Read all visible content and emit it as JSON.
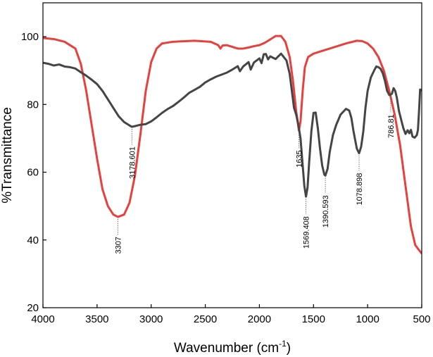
{
  "chart_data": {
    "type": "line",
    "title": "",
    "xlabel": "Wavenumber (cm",
    "xlabel_sup": "-1",
    "xlabel_suffix": ")",
    "ylabel": "%Transmittance",
    "xlim": [
      4000,
      500
    ],
    "ylim": [
      20,
      110
    ],
    "x_reversed": true,
    "grid": false,
    "legend": "none",
    "xticks": [
      4000,
      3500,
      3000,
      2500,
      2000,
      1500,
      1000,
      500
    ],
    "xtick_labels": [
      "4000",
      "3500",
      "3000",
      "2500",
      "2000",
      "1500",
      "1000",
      "500"
    ],
    "yticks": [
      20,
      40,
      60,
      80,
      100
    ],
    "ytick_labels": [
      "20",
      "40",
      "60",
      "80",
      "100"
    ],
    "series": [
      {
        "color": "#e8403d",
        "points": [
          [
            4000,
            99.6
          ],
          [
            3900,
            99.3
          ],
          [
            3800,
            98.5
          ],
          [
            3700,
            96.5
          ],
          [
            3650,
            92
          ],
          [
            3600,
            84
          ],
          [
            3550,
            74
          ],
          [
            3500,
            64
          ],
          [
            3450,
            55
          ],
          [
            3400,
            50
          ],
          [
            3350,
            47.5
          ],
          [
            3307,
            46.8
          ],
          [
            3250,
            47.5
          ],
          [
            3200,
            51
          ],
          [
            3150,
            59
          ],
          [
            3100,
            71
          ],
          [
            3050,
            84
          ],
          [
            3000,
            92.5
          ],
          [
            2950,
            96.5
          ],
          [
            2900,
            98
          ],
          [
            2800,
            98.5
          ],
          [
            2600,
            98.8
          ],
          [
            2450,
            98.5
          ],
          [
            2380,
            97.5
          ],
          [
            2360,
            96.5
          ],
          [
            2340,
            97.4
          ],
          [
            2300,
            97.5
          ],
          [
            2250,
            97
          ],
          [
            2200,
            96.5
          ],
          [
            2150,
            96.5
          ],
          [
            2100,
            96.8
          ],
          [
            2050,
            97.2
          ],
          [
            2000,
            97.5
          ],
          [
            1950,
            98.2
          ],
          [
            1900,
            99.2
          ],
          [
            1850,
            100.2
          ],
          [
            1800,
            100.2
          ],
          [
            1760,
            98.5
          ],
          [
            1720,
            94
          ],
          [
            1690,
            87
          ],
          [
            1660,
            78
          ],
          [
            1635,
            72.3
          ],
          [
            1620,
            75
          ],
          [
            1600,
            84
          ],
          [
            1580,
            91
          ],
          [
            1550,
            94
          ],
          [
            1500,
            95
          ],
          [
            1400,
            96
          ],
          [
            1300,
            97
          ],
          [
            1200,
            98
          ],
          [
            1100,
            98.8
          ],
          [
            1050,
            98.7
          ],
          [
            1000,
            98
          ],
          [
            950,
            96.5
          ],
          [
            900,
            94
          ],
          [
            850,
            90
          ],
          [
            800,
            84
          ],
          [
            750,
            77
          ],
          [
            700,
            68
          ],
          [
            650,
            56
          ],
          [
            600,
            44
          ],
          [
            560,
            38.5
          ],
          [
            530,
            37.2
          ],
          [
            500,
            36
          ]
        ]
      },
      {
        "color": "#454545",
        "points": [
          [
            4000,
            92.3
          ],
          [
            3950,
            92
          ],
          [
            3900,
            91.5
          ],
          [
            3850,
            91.8
          ],
          [
            3800,
            91.2
          ],
          [
            3750,
            91
          ],
          [
            3700,
            90.6
          ],
          [
            3650,
            89.5
          ],
          [
            3600,
            88.5
          ],
          [
            3550,
            87.3
          ],
          [
            3500,
            86
          ],
          [
            3450,
            84
          ],
          [
            3400,
            81.5
          ],
          [
            3350,
            79
          ],
          [
            3300,
            76.5
          ],
          [
            3250,
            74.8
          ],
          [
            3200,
            73.8
          ],
          [
            3178.6,
            73.4
          ],
          [
            3150,
            73.6
          ],
          [
            3100,
            74
          ],
          [
            3050,
            74.2
          ],
          [
            3000,
            75
          ],
          [
            2950,
            76.2
          ],
          [
            2900,
            77.5
          ],
          [
            2850,
            78.6
          ],
          [
            2800,
            79.5
          ],
          [
            2750,
            80.7
          ],
          [
            2700,
            82
          ],
          [
            2650,
            83.4
          ],
          [
            2600,
            84.3
          ],
          [
            2550,
            85.2
          ],
          [
            2500,
            86.5
          ],
          [
            2450,
            87.4
          ],
          [
            2400,
            88.2
          ],
          [
            2350,
            88.8
          ],
          [
            2300,
            89.4
          ],
          [
            2250,
            90.3
          ],
          [
            2200,
            91.3
          ],
          [
            2180,
            89.8
          ],
          [
            2150,
            91.2
          ],
          [
            2100,
            92.5
          ],
          [
            2080,
            90.3
          ],
          [
            2050,
            92.4
          ],
          [
            2000,
            93.6
          ],
          [
            1980,
            92.2
          ],
          [
            1960,
            94.8
          ],
          [
            1940,
            94.9
          ],
          [
            1920,
            93.3
          ],
          [
            1900,
            94.2
          ],
          [
            1850,
            93.4
          ],
          [
            1800,
            95
          ],
          [
            1750,
            93
          ],
          [
            1720,
            89
          ],
          [
            1700,
            84
          ],
          [
            1680,
            79
          ],
          [
            1660,
            77
          ],
          [
            1640,
            74
          ],
          [
            1620,
            70
          ],
          [
            1600,
            62
          ],
          [
            1585,
            56
          ],
          [
            1569.4,
            52.8
          ],
          [
            1555,
            55.5
          ],
          [
            1540,
            63
          ],
          [
            1520,
            72
          ],
          [
            1500,
            77.5
          ],
          [
            1480,
            77.6
          ],
          [
            1460,
            73
          ],
          [
            1440,
            67
          ],
          [
            1420,
            62
          ],
          [
            1400,
            59.3
          ],
          [
            1390.6,
            59
          ],
          [
            1370,
            61
          ],
          [
            1350,
            66
          ],
          [
            1320,
            71
          ],
          [
            1290,
            74
          ],
          [
            1250,
            77
          ],
          [
            1200,
            78.7
          ],
          [
            1170,
            78.2
          ],
          [
            1150,
            76
          ],
          [
            1130,
            72
          ],
          [
            1100,
            67
          ],
          [
            1078.9,
            65.6
          ],
          [
            1060,
            67.5
          ],
          [
            1040,
            72
          ],
          [
            1020,
            79
          ],
          [
            1000,
            84
          ],
          [
            970,
            88
          ],
          [
            940,
            90
          ],
          [
            920,
            91.2
          ],
          [
            900,
            91
          ],
          [
            880,
            90.5
          ],
          [
            860,
            89.2
          ],
          [
            840,
            87
          ],
          [
            820,
            84
          ],
          [
            800,
            82.8
          ],
          [
            786.8,
            82.9
          ],
          [
            775,
            83.2
          ],
          [
            760,
            84.8
          ],
          [
            745,
            84
          ],
          [
            730,
            82
          ],
          [
            710,
            78
          ],
          [
            690,
            75.5
          ],
          [
            670,
            73
          ],
          [
            650,
            71.3
          ],
          [
            630,
            72.4
          ],
          [
            615,
            71.5
          ],
          [
            600,
            72.5
          ],
          [
            585,
            70.5
          ],
          [
            565,
            70.2
          ],
          [
            545,
            71
          ],
          [
            535,
            72.5
          ],
          [
            525,
            78
          ],
          [
            515,
            84.4
          ],
          [
            505,
            84.2
          ],
          [
            500,
            84
          ]
        ]
      }
    ],
    "annotations": [
      {
        "text": "3307",
        "x": 3307,
        "y_point": 46.8,
        "side": "below"
      },
      {
        "text": "3178.601",
        "x": 3178.6,
        "y_point": 73.4,
        "side": "below"
      },
      {
        "text": "1635",
        "x": 1635,
        "y_point": 72.3,
        "side": "below"
      },
      {
        "text": "1569.408",
        "x": 1569.4,
        "y_point": 52.8,
        "side": "below"
      },
      {
        "text": "1390.593",
        "x": 1390.6,
        "y_point": 59,
        "side": "below"
      },
      {
        "text": "1078.898",
        "x": 1078.9,
        "y_point": 65.6,
        "side": "below"
      },
      {
        "text": "786.81",
        "x": 786.8,
        "y_point": 82.9,
        "side": "below"
      }
    ]
  }
}
